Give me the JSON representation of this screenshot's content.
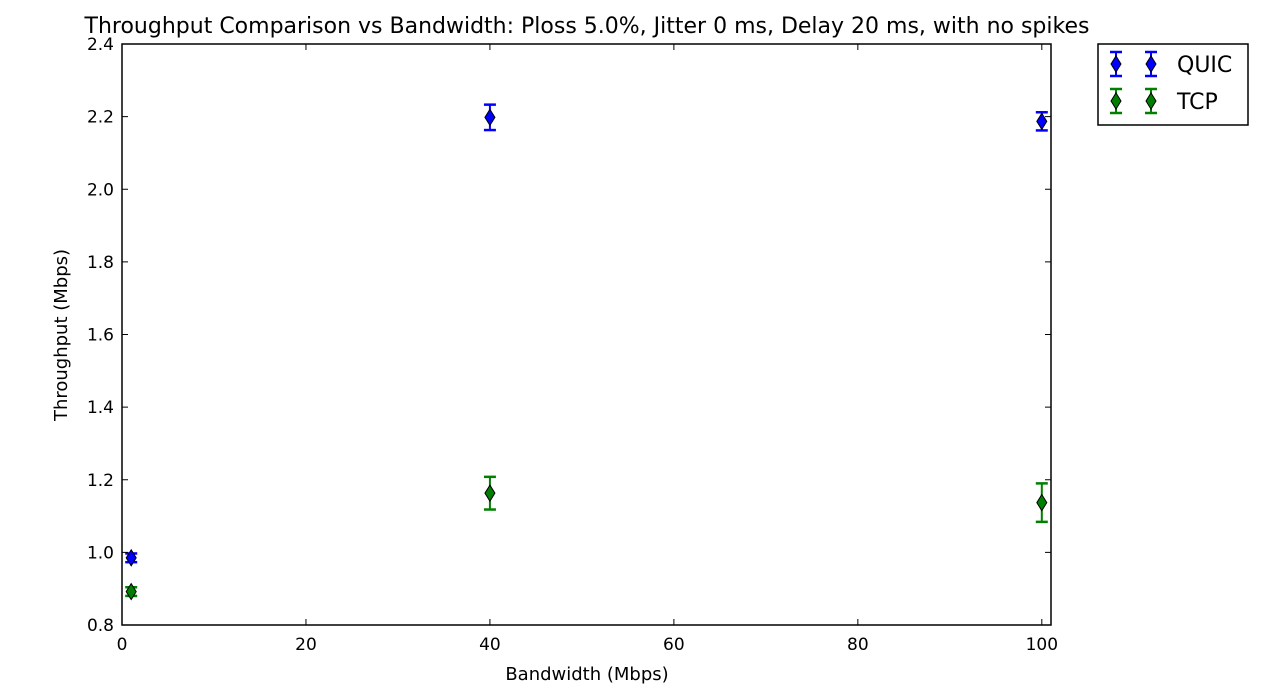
{
  "chart_data": {
    "type": "scatter",
    "title": "Throughput Comparison vs Bandwidth: Ploss 5.0%, Jitter 0 ms, Delay 20 ms, with no spikes",
    "xlabel": "Bandwidth (Mbps)",
    "ylabel": "Throughput (Mbps)",
    "xlim": [
      0,
      101
    ],
    "ylim": [
      0.8,
      2.4
    ],
    "xticks": [
      0,
      20,
      40,
      60,
      80,
      100
    ],
    "yticks": [
      0.8,
      1.0,
      1.2,
      1.4,
      1.6,
      1.8,
      2.0,
      2.2,
      2.4
    ],
    "xtick_labels": [
      "0",
      "20",
      "40",
      "60",
      "80",
      "100"
    ],
    "ytick_labels": [
      "0.8",
      "1.0",
      "1.2",
      "1.4",
      "1.6",
      "1.8",
      "2.0",
      "2.2",
      "2.4"
    ],
    "grid": false,
    "legend_position": "outside top-right",
    "marker": "thin-diamond with error bars",
    "series": [
      {
        "name": "QUIC",
        "color": "#0000ff",
        "points": [
          {
            "x": 1,
            "y": 0.985,
            "err": 0.012
          },
          {
            "x": 40,
            "y": 2.198,
            "err": 0.035
          },
          {
            "x": 100,
            "y": 2.187,
            "err": 0.025
          }
        ]
      },
      {
        "name": "TCP",
        "color": "#008000",
        "points": [
          {
            "x": 1,
            "y": 0.892,
            "err": 0.012
          },
          {
            "x": 40,
            "y": 1.163,
            "err": 0.045
          },
          {
            "x": 100,
            "y": 1.137,
            "err": 0.053
          }
        ]
      }
    ]
  }
}
